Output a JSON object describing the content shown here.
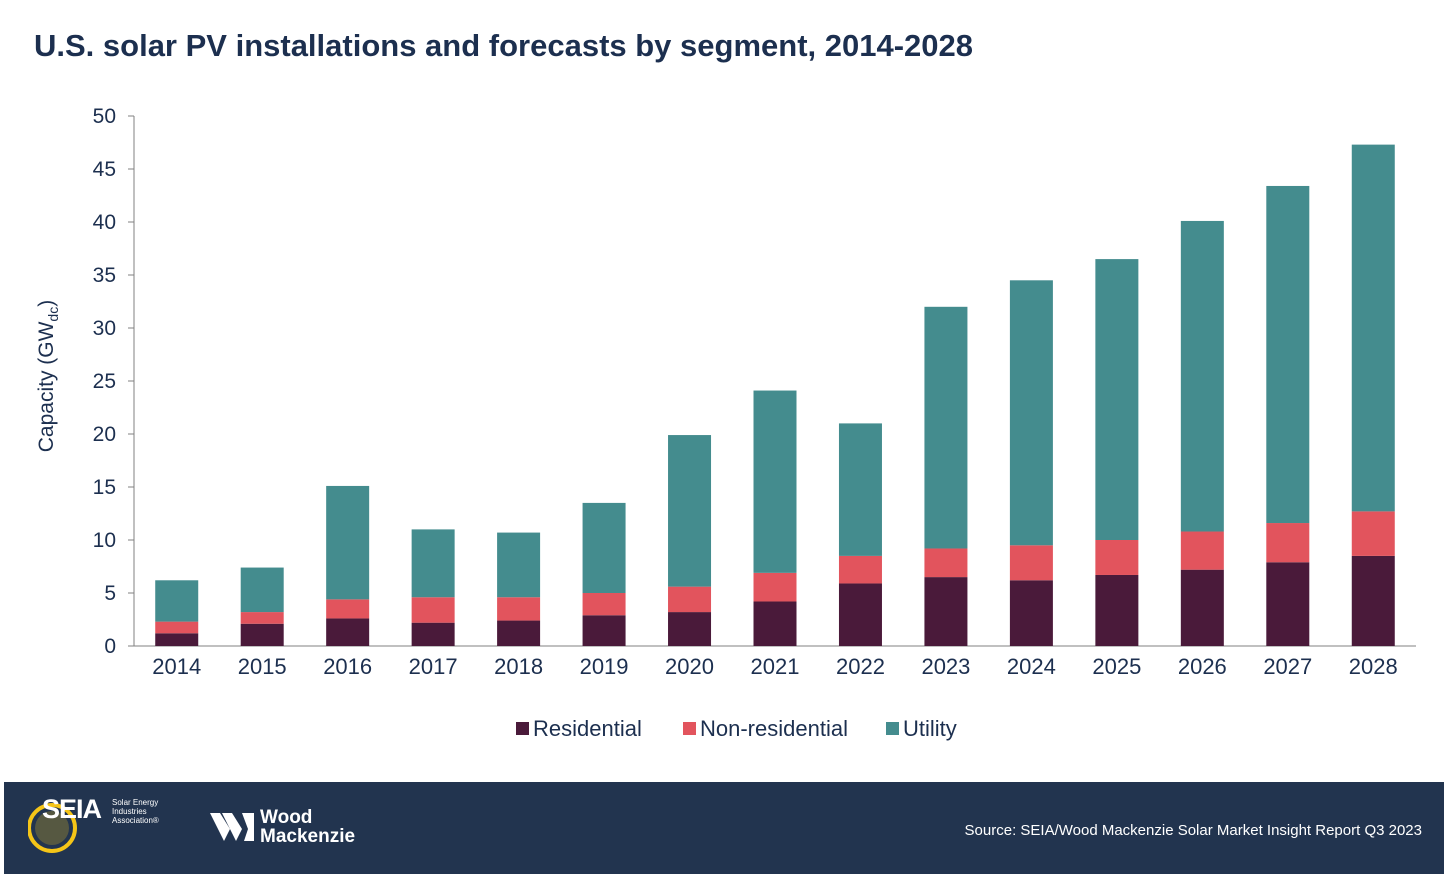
{
  "chart_data": {
    "type": "bar",
    "stacked": true,
    "title": "U.S. solar PV installations and forecasts by segment, 2014-2028",
    "xlabel": "",
    "ylabel": "Capacity (GW",
    "ylabel_subscript": "dc",
    "ylabel_close": ")",
    "ylim": [
      0,
      50
    ],
    "yticks": [
      0,
      5,
      10,
      15,
      20,
      25,
      30,
      35,
      40,
      45,
      50
    ],
    "grid": false,
    "legend_position": "bottom",
    "categories": [
      "2014",
      "2015",
      "2016",
      "2017",
      "2018",
      "2019",
      "2020",
      "2021",
      "2022",
      "2023",
      "2024",
      "2025",
      "2026",
      "2027",
      "2028"
    ],
    "series": [
      {
        "name": "Residential",
        "color": "#4a1a3a",
        "values": [
          1.2,
          2.1,
          2.6,
          2.2,
          2.4,
          2.9,
          3.2,
          4.2,
          5.9,
          6.5,
          6.2,
          6.7,
          7.2,
          7.9,
          8.5
        ]
      },
      {
        "name": "Non-residential",
        "color": "#e2545d",
        "values": [
          1.1,
          1.1,
          1.8,
          2.4,
          2.2,
          2.1,
          2.4,
          2.7,
          2.6,
          2.7,
          3.3,
          3.3,
          3.6,
          3.7,
          4.2
        ]
      },
      {
        "name": "Utility",
        "color": "#448c8e",
        "values": [
          3.9,
          4.2,
          10.7,
          6.4,
          6.1,
          8.5,
          14.3,
          17.2,
          12.5,
          22.8,
          25.0,
          26.5,
          29.3,
          31.8,
          34.6
        ]
      }
    ]
  },
  "footer": {
    "seia_brand": "SEIA",
    "seia_subtitle": "Solar Energy Industries Association®",
    "wm_name_line1": "Wood",
    "wm_name_line2": "Mackenzie",
    "source": "Source: SEIA/Wood Mackenzie Solar Market Insight Report Q3 2023",
    "background_color": "#22344f"
  }
}
